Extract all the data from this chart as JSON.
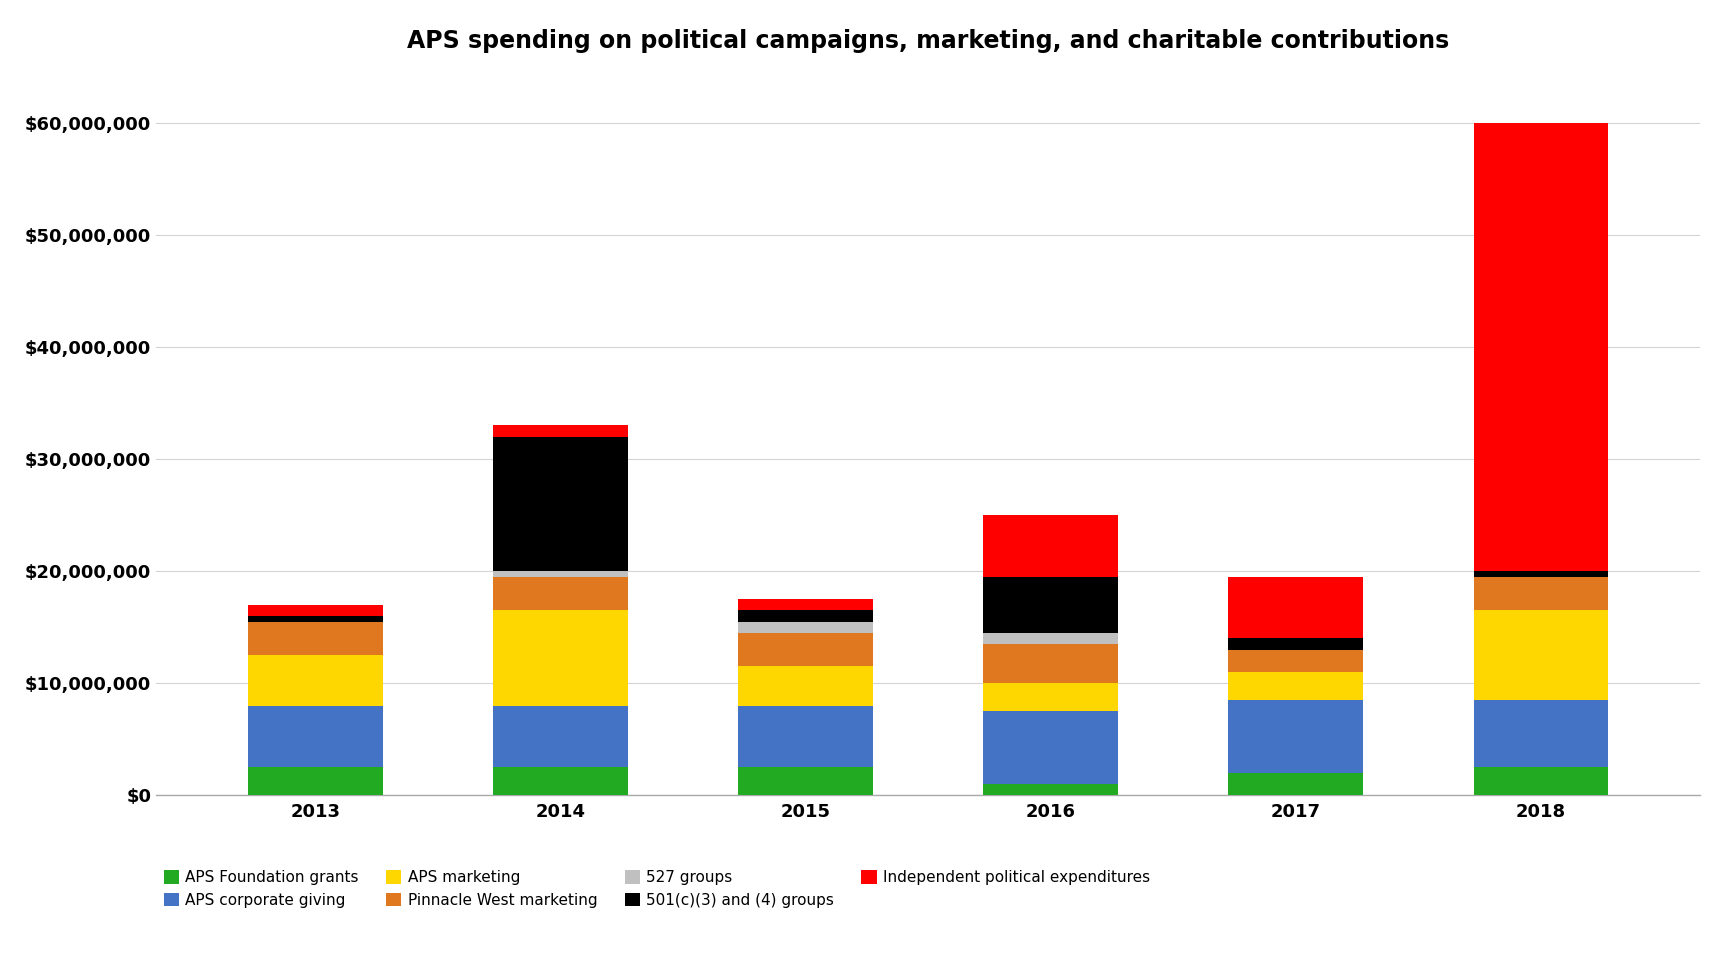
{
  "title": "APS spending on political campaigns, marketing, and charitable contributions",
  "years": [
    "2013",
    "2014",
    "2015",
    "2016",
    "2017",
    "2018"
  ],
  "series": [
    {
      "label": "APS Foundation grants",
      "color": "#22aa22",
      "values": [
        2500000,
        2500000,
        2500000,
        1000000,
        2000000,
        2500000
      ]
    },
    {
      "label": "APS corporate giving",
      "color": "#4472c4",
      "values": [
        5500000,
        5500000,
        5500000,
        6500000,
        6500000,
        6000000
      ]
    },
    {
      "label": "APS marketing",
      "color": "#ffd700",
      "values": [
        4500000,
        8500000,
        3500000,
        2500000,
        2500000,
        8000000
      ]
    },
    {
      "label": "Pinnacle West marketing",
      "color": "#e07820",
      "values": [
        3000000,
        3000000,
        3000000,
        3500000,
        2000000,
        3000000
      ]
    },
    {
      "label": "527 groups",
      "color": "#c0c0c0",
      "values": [
        0,
        500000,
        1000000,
        1000000,
        0,
        0
      ]
    },
    {
      "label": "501(c)(3) and (4) groups",
      "color": "#000000",
      "values": [
        500000,
        12000000,
        1000000,
        5000000,
        1000000,
        500000
      ]
    },
    {
      "label": "Independent political expenditures",
      "color": "#ff0000",
      "values": [
        1000000,
        1000000,
        1000000,
        5500000,
        5500000,
        40000000
      ]
    }
  ],
  "ylim": [
    0,
    65000000
  ],
  "ytick_step": 10000000,
  "background_color": "#ffffff",
  "grid_color": "#d4d4d4",
  "title_fontsize": 17,
  "legend_fontsize": 11,
  "tick_fontsize": 13,
  "bar_width": 0.55
}
